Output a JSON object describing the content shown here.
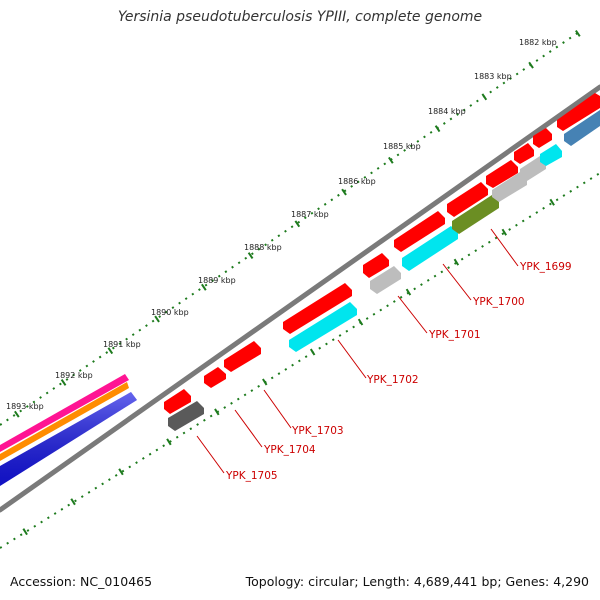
{
  "title": "Yersinia pseudotuberculosis YPIII, complete genome",
  "footer": {
    "accession": "Accession: NC_010465",
    "summary": "Topology: circular; Length: 4,689,441 bp; Genes: 4,290"
  },
  "ruler": {
    "unit": "kbp",
    "labels": [
      "1882 kbp",
      "1883 kbp",
      "1884 kbp",
      "1885 kbp",
      "1886 kbp",
      "1887 kbp",
      "1888 kbp",
      "1889 kbp",
      "1890 kbp",
      "1891 kbp",
      "1892 kbp",
      "1893 kbp"
    ]
  },
  "colors": {
    "backbone": "#808080",
    "tick": "#1e7b1e",
    "gene_label": "#cc0000",
    "leader": "#cc0000"
  },
  "genes": [
    {
      "label": "YPK_1699",
      "color": "#ff0000"
    },
    {
      "label": "YPK_1700",
      "color": "#ff0000"
    },
    {
      "label": "YPK_1701",
      "color": "#ff0000"
    },
    {
      "label": "YPK_1702",
      "color": "#ff0000"
    },
    {
      "label": "YPK_1703",
      "color": "#ff0000"
    },
    {
      "label": "YPK_1704",
      "color": "#ff0000"
    },
    {
      "label": "YPK_1705",
      "color": "#ff0000"
    }
  ],
  "feature_colors": {
    "red": "#ff0000",
    "cyan": "#00e5ee",
    "gray": "#bdbdbd",
    "olive": "#6b8e23",
    "steelblue": "#4682b4",
    "darkgray": "#5a5a5a",
    "magenta": "#ff1493",
    "orange": "#ff8c00",
    "blue": "#1414e6"
  }
}
